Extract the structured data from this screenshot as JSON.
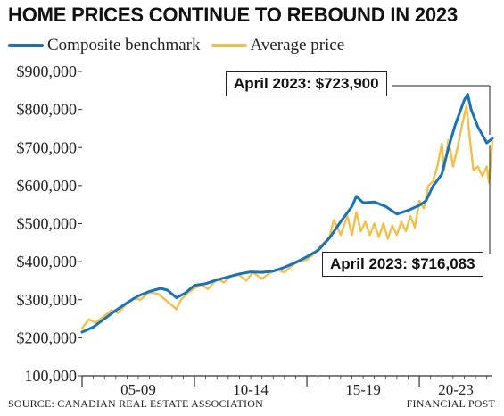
{
  "title": "HOME PRICES CONTINUE TO REBOUND IN 2023",
  "source": "SOURCE: CANADIAN REAL ESTATE ASSOCIATION",
  "credit": "FINANCIAL POST",
  "colors": {
    "composite": "#1a72b8",
    "average": "#f2c04a",
    "axis": "#333333",
    "grid": "#e6e6e6"
  },
  "chart_data": {
    "type": "line",
    "title": "HOME PRICES CONTINUE TO REBOUND IN 2023",
    "xlabel": "",
    "ylabel": "",
    "xlim": [
      2005.0,
      2023.25
    ],
    "ylim": [
      100000,
      900000
    ],
    "y_ticks": [
      900000,
      800000,
      700000,
      600000,
      500000,
      400000,
      300000,
      200000,
      100000
    ],
    "y_tick_labels": [
      "$900,000",
      "$800,000",
      "$700,000",
      "$600,000",
      "$500,000",
      "$400,000",
      "$300,000",
      "$200,000",
      "100,000"
    ],
    "x_groups": [
      {
        "label": "05-09",
        "start": 2005,
        "end": 2010
      },
      {
        "label": "10-14",
        "start": 2010,
        "end": 2015
      },
      {
        "label": "15-19",
        "start": 2015,
        "end": 2020
      },
      {
        "label": "20-23",
        "start": 2020,
        "end": 2023.25
      }
    ],
    "grid": false,
    "legend": "top-left",
    "series": [
      {
        "name": "Composite benchmark",
        "color": "#1a72b8",
        "x": [
          2005.0,
          2005.5,
          2006.0,
          2006.5,
          2007.0,
          2007.5,
          2008.0,
          2008.5,
          2008.8,
          2009.2,
          2009.6,
          2010.0,
          2010.5,
          2011.0,
          2011.5,
          2012.0,
          2012.5,
          2013.0,
          2013.5,
          2014.0,
          2014.5,
          2015.0,
          2015.5,
          2016.0,
          2016.5,
          2017.0,
          2017.2,
          2017.5,
          2018.0,
          2018.5,
          2019.0,
          2019.5,
          2020.0,
          2020.3,
          2020.6,
          2021.0,
          2021.3,
          2021.6,
          2022.0,
          2022.15,
          2022.3,
          2022.6,
          2023.0,
          2023.25
        ],
        "values": [
          215000,
          228000,
          250000,
          272000,
          292000,
          310000,
          322000,
          330000,
          325000,
          305000,
          318000,
          338000,
          342000,
          352000,
          360000,
          368000,
          373000,
          372000,
          375000,
          385000,
          398000,
          413000,
          430000,
          462000,
          505000,
          545000,
          572000,
          555000,
          557000,
          545000,
          525000,
          535000,
          548000,
          560000,
          598000,
          630000,
          700000,
          760000,
          825000,
          840000,
          800000,
          755000,
          712000,
          723900
        ]
      },
      {
        "name": "Average price",
        "color": "#f2c04a",
        "x": [
          2005.0,
          2005.3,
          2005.6,
          2006.0,
          2006.3,
          2006.6,
          2007.0,
          2007.3,
          2007.6,
          2008.0,
          2008.4,
          2008.7,
          2009.0,
          2009.2,
          2009.4,
          2009.7,
          2010.0,
          2010.3,
          2010.6,
          2011.0,
          2011.3,
          2011.6,
          2012.0,
          2012.3,
          2012.6,
          2013.0,
          2013.3,
          2013.6,
          2014.0,
          2014.3,
          2014.6,
          2015.0,
          2015.3,
          2015.6,
          2016.0,
          2016.2,
          2016.5,
          2016.8,
          2017.0,
          2017.2,
          2017.4,
          2017.6,
          2017.8,
          2018.0,
          2018.2,
          2018.4,
          2018.6,
          2018.8,
          2019.0,
          2019.2,
          2019.4,
          2019.6,
          2019.8,
          2020.0,
          2020.2,
          2020.4,
          2020.6,
          2020.8,
          2021.0,
          2021.1,
          2021.3,
          2021.5,
          2021.7,
          2021.9,
          2022.1,
          2022.2,
          2022.4,
          2022.6,
          2022.8,
          2023.0,
          2023.1,
          2023.25
        ],
        "values": [
          225000,
          248000,
          240000,
          258000,
          272000,
          265000,
          290000,
          305000,
          300000,
          320000,
          315000,
          300000,
          285000,
          275000,
          300000,
          318000,
          330000,
          340000,
          328000,
          355000,
          345000,
          362000,
          365000,
          350000,
          372000,
          355000,
          368000,
          380000,
          372000,
          388000,
          400000,
          405000,
          420000,
          440000,
          465000,
          510000,
          470000,
          520000,
          470000,
          530000,
          480000,
          505000,
          470000,
          500000,
          465000,
          500000,
          460000,
          495000,
          470000,
          505000,
          480000,
          520000,
          490000,
          560000,
          540000,
          600000,
          610000,
          650000,
          710000,
          640000,
          720000,
          650000,
          700000,
          760000,
          810000,
          750000,
          640000,
          650000,
          625000,
          650000,
          608000,
          716083
        ]
      }
    ],
    "annotations": [
      {
        "text": "April 2023: $723,900",
        "series": "Composite benchmark"
      },
      {
        "text": "April 2023: $716,083",
        "series": "Average price"
      }
    ]
  }
}
